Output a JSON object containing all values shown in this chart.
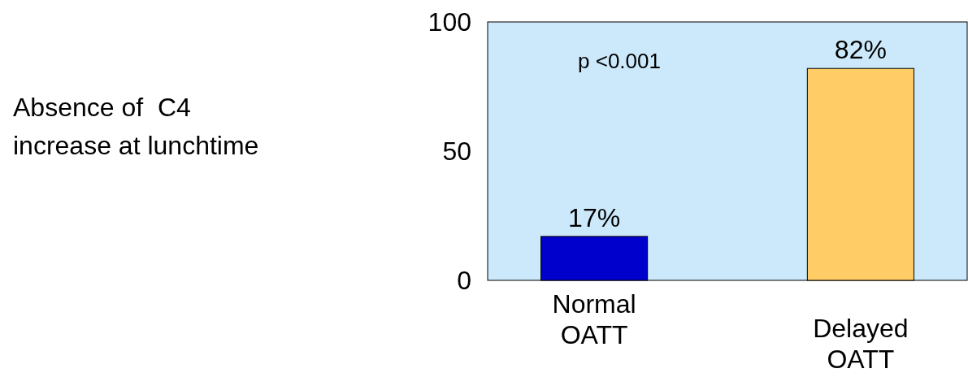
{
  "chart_data": {
    "type": "bar",
    "categories": [
      "Normal\nOATT",
      "Delayed\nOATT"
    ],
    "values": [
      17,
      82
    ],
    "value_labels": [
      "17%",
      "82%"
    ],
    "colors": [
      "#0000cc",
      "#ffcc66"
    ],
    "ylim": [
      0,
      100
    ],
    "yticks": [
      0,
      50,
      100
    ],
    "annotations": [
      "p <0.001",
      "Absence of  C4\nincrease at lunchtime"
    ],
    "grid": false
  }
}
